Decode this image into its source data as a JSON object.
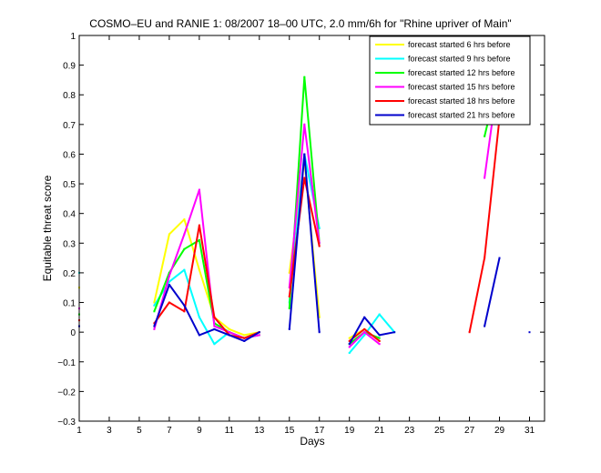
{
  "chart_data": {
    "type": "line",
    "title": "COSMO–EU and RANIE 1: 08/2007 18–00 UTC, 2.0 mm/6h for \"Rhine upriver of Main\"",
    "xlabel": "Days",
    "ylabel": "Equitable threat score",
    "xlim": [
      1,
      32
    ],
    "ylim": [
      -0.3,
      1
    ],
    "xticks": [
      1,
      3,
      5,
      7,
      9,
      11,
      13,
      15,
      17,
      19,
      21,
      23,
      25,
      27,
      29,
      31
    ],
    "yticks": [
      -0.3,
      -0.2,
      -0.1,
      0,
      0.1,
      0.2,
      0.3,
      0.4,
      0.5,
      0.6,
      0.7,
      0.8,
      0.9,
      1
    ],
    "ytick_labels": [
      "−0.3",
      "−0.2",
      "−0.1",
      "0",
      "0.1",
      "0.2",
      "0.3",
      "0.4",
      "0.5",
      "0.6",
      "0.7",
      "0.8",
      "0.9",
      "1"
    ],
    "legend_position": "top-right",
    "grid": false,
    "series": [
      {
        "name": "forecast started 6 hrs before",
        "color": "#ffff00",
        "values": [
          0.15,
          null,
          null,
          null,
          null,
          0.1,
          0.33,
          0.38,
          0.21,
          0.05,
          0.01,
          -0.01,
          0,
          null,
          0.2,
          0.58,
          0.05,
          null,
          -0.02,
          0.01,
          -0.03,
          null,
          null,
          null,
          null,
          null,
          null,
          null,
          null,
          null,
          null
        ]
      },
      {
        "name": "forecast started 9 hrs before",
        "color": "#00ffff",
        "values": [
          0.2,
          null,
          null,
          null,
          null,
          0.09,
          0.17,
          0.21,
          0.05,
          -0.04,
          0.0,
          -0.02,
          0,
          null,
          0.1,
          0.6,
          0.35,
          null,
          -0.07,
          -0.01,
          0.06,
          0.0,
          null,
          null,
          null,
          null,
          null,
          0.75,
          0.9,
          null,
          null
        ]
      },
      {
        "name": "forecast started 12 hrs before",
        "color": "#00ff00",
        "values": [
          0.06,
          null,
          null,
          null,
          null,
          0.07,
          0.2,
          0.28,
          0.31,
          0.03,
          0.0,
          -0.02,
          -0.01,
          null,
          0.08,
          0.86,
          0.3,
          null,
          -0.04,
          0.0,
          -0.02,
          null,
          null,
          null,
          null,
          null,
          null,
          0.66,
          0.87,
          null,
          null
        ]
      },
      {
        "name": "forecast started 15 hrs before",
        "color": "#ff00ff",
        "values": [
          0.08,
          null,
          null,
          null,
          null,
          0.01,
          0.19,
          0.33,
          0.48,
          0.02,
          0.0,
          -0.02,
          -0.01,
          null,
          0.15,
          0.7,
          0.3,
          null,
          -0.05,
          0.0,
          -0.04,
          null,
          null,
          null,
          null,
          null,
          null,
          0.52,
          0.89,
          null,
          null
        ]
      },
      {
        "name": "forecast started 18 hrs before",
        "color": "#ff0000",
        "values": [
          0.04,
          null,
          null,
          null,
          null,
          0.03,
          0.1,
          0.07,
          0.36,
          0.05,
          -0.01,
          -0.02,
          0.0,
          null,
          0.12,
          0.52,
          0.29,
          null,
          -0.03,
          0.01,
          -0.03,
          null,
          null,
          null,
          null,
          null,
          0.0,
          0.25,
          0.72,
          null,
          null
        ]
      },
      {
        "name": "forecast started 21 hrs before",
        "color": "#0000cc",
        "values": [
          0.02,
          null,
          null,
          null,
          null,
          0.02,
          0.16,
          0.09,
          -0.01,
          0.01,
          -0.01,
          -0.03,
          0.0,
          null,
          0.01,
          0.6,
          0.0,
          null,
          -0.04,
          0.05,
          -0.01,
          0.0,
          null,
          null,
          null,
          null,
          null,
          0.02,
          0.25,
          null,
          0.0
        ]
      }
    ]
  }
}
